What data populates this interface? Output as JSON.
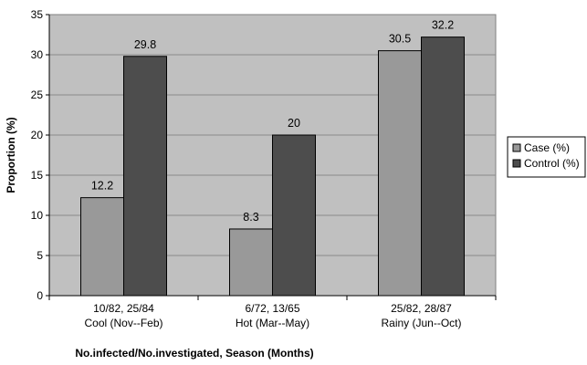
{
  "chart_data": {
    "type": "bar",
    "title": "",
    "xlabel": "No.infected/No.investigated, Season (Months)",
    "ylabel": "Proportion (%)",
    "ylim": [
      0,
      35
    ],
    "yticks": [
      0,
      5,
      10,
      15,
      20,
      25,
      30,
      35
    ],
    "grid": true,
    "legend_position": "right",
    "plot_background": "#c0c0c0",
    "categories": [
      {
        "line1": "10/82,  25/84",
        "line2": "Cool (Nov--Feb)"
      },
      {
        "line1": "6/72,  13/65",
        "line2": "Hot (Mar--May)"
      },
      {
        "line1": "25/82,  28/87",
        "line2": "Rainy (Jun--Oct)"
      }
    ],
    "series": [
      {
        "name": "Case (%)",
        "color": "#999999",
        "values": [
          12.2,
          8.3,
          30.5
        ],
        "labels": [
          "12.2",
          "8.3",
          "30.5"
        ]
      },
      {
        "name": "Control (%)",
        "color": "#4d4d4d",
        "values": [
          29.8,
          20,
          32.2
        ],
        "labels": [
          "29.8",
          "20",
          "32.2"
        ]
      }
    ]
  }
}
